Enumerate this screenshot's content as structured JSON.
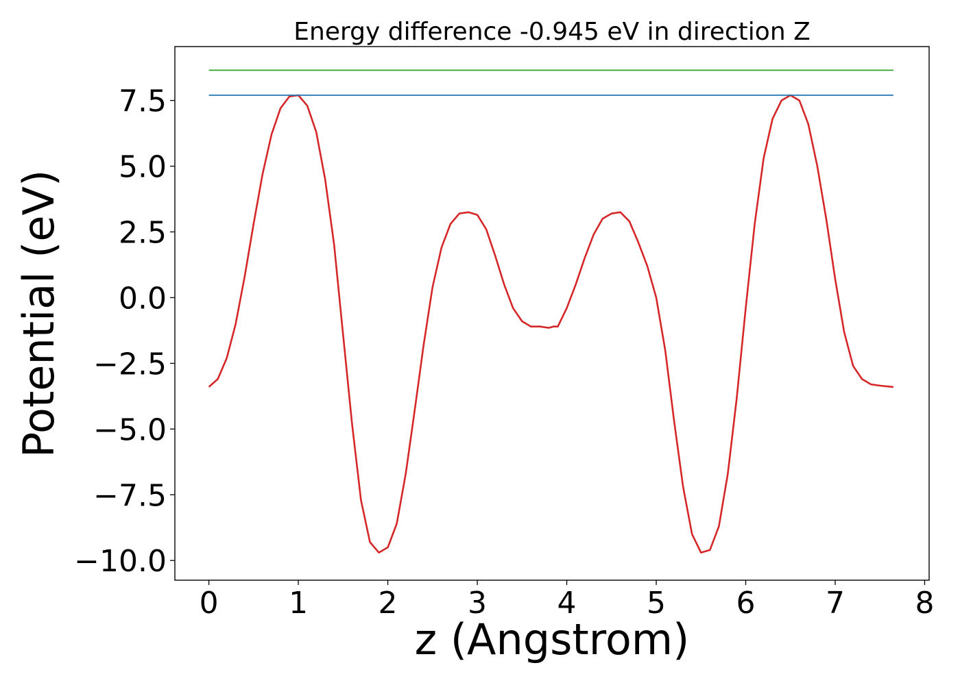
{
  "chart_data": {
    "type": "line",
    "title": "Energy difference -0.945 eV in direction Z",
    "xlabel": "z (Angstrom)",
    "ylabel": "Potential (eV)",
    "xlim": [
      -0.38,
      8.05
    ],
    "ylim": [
      -10.75,
      9.55
    ],
    "x_ticks": [
      0,
      1,
      2,
      3,
      4,
      5,
      6,
      7,
      8
    ],
    "x_tick_labels": [
      "0",
      "1",
      "2",
      "3",
      "4",
      "5",
      "6",
      "7",
      "8"
    ],
    "y_ticks": [
      7.5,
      5.0,
      2.5,
      0.0,
      -2.5,
      -5.0,
      -7.5,
      -10.0
    ],
    "y_tick_labels": [
      "7.5",
      "5.0",
      "2.5",
      "0.0",
      "−2.5",
      "−5.0",
      "−7.5",
      "−10.0"
    ],
    "grid": false,
    "legend": "none",
    "series": [
      {
        "color": "#d62728",
        "style": "curve",
        "x": [
          0.0,
          0.1,
          0.2,
          0.3,
          0.4,
          0.5,
          0.6,
          0.7,
          0.8,
          0.9,
          1.0,
          1.1,
          1.2,
          1.3,
          1.4,
          1.5,
          1.6,
          1.7,
          1.8,
          1.9,
          2.0,
          2.1,
          2.2,
          2.3,
          2.4,
          2.5,
          2.6,
          2.7,
          2.8,
          2.9,
          3.0,
          3.1,
          3.2,
          3.3,
          3.4,
          3.5,
          3.6,
          3.7,
          3.8,
          3.85,
          3.9,
          4.0,
          4.1,
          4.2,
          4.3,
          4.4,
          4.5,
          4.6,
          4.7,
          4.8,
          4.9,
          5.0,
          5.1,
          5.2,
          5.3,
          5.4,
          5.5,
          5.6,
          5.7,
          5.8,
          5.9,
          6.0,
          6.1,
          6.2,
          6.3,
          6.4,
          6.5,
          6.6,
          6.7,
          6.8,
          6.9,
          7.0,
          7.1,
          7.2,
          7.3,
          7.4,
          7.5,
          7.65
        ],
        "y": [
          -3.4,
          -3.1,
          -2.3,
          -1.0,
          0.8,
          2.8,
          4.7,
          6.2,
          7.2,
          7.65,
          7.7,
          7.3,
          6.3,
          4.5,
          2.0,
          -1.4,
          -4.8,
          -7.7,
          -9.3,
          -9.7,
          -9.5,
          -8.6,
          -6.7,
          -4.3,
          -1.8,
          0.4,
          1.9,
          2.8,
          3.2,
          3.25,
          3.15,
          2.6,
          1.6,
          0.5,
          -0.4,
          -0.9,
          -1.1,
          -1.1,
          -1.15,
          -1.1,
          -1.1,
          -0.4,
          0.5,
          1.5,
          2.4,
          3.0,
          3.2,
          3.25,
          2.9,
          2.1,
          1.2,
          0.0,
          -2.0,
          -4.7,
          -7.2,
          -9.0,
          -9.7,
          -9.6,
          -8.7,
          -6.7,
          -3.8,
          -0.4,
          2.8,
          5.3,
          6.8,
          7.5,
          7.7,
          7.5,
          6.6,
          5.0,
          3.0,
          0.7,
          -1.3,
          -2.6,
          -3.1,
          -3.3,
          -3.35,
          -3.4
        ]
      },
      {
        "color": "#1f77b4",
        "style": "hline",
        "x": [
          0.0,
          7.65
        ],
        "y": [
          7.7,
          7.7
        ]
      },
      {
        "color": "#2ca02c",
        "style": "hline",
        "x": [
          0.0,
          7.65
        ],
        "y": [
          8.65,
          8.65
        ]
      }
    ]
  }
}
